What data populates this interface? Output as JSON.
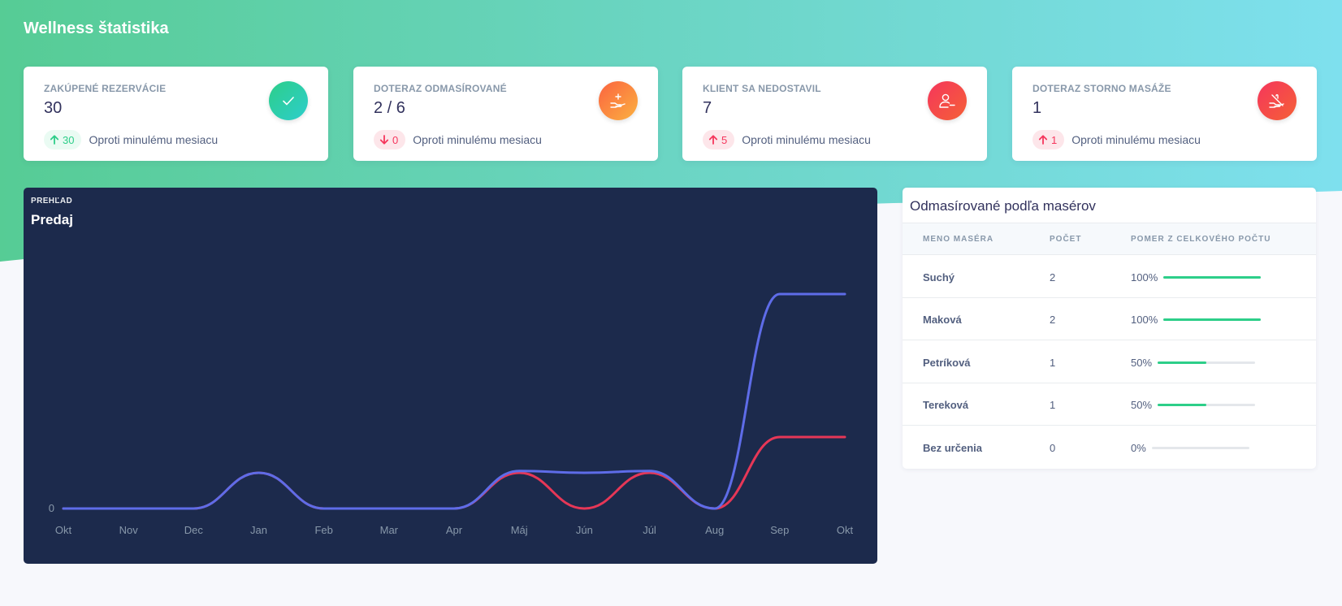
{
  "page": {
    "title": "Wellness štatistika"
  },
  "cards": [
    {
      "label": "ZAKÚPENÉ REZERVÁCIE",
      "value": "30",
      "change": "30",
      "trend": "up",
      "badge": "green",
      "since": "Oproti minulému mesiacu",
      "icon": "check-icon",
      "icon_gradient": [
        "#2dce89",
        "#2dcecc"
      ]
    },
    {
      "label": "DOTERAZ ODMASÍROVANÉ",
      "value": "2 / 6",
      "change": "0",
      "trend": "down",
      "badge": "red",
      "since": "Oproti minulému mesiacu",
      "icon": "hand-plus-icon",
      "icon_gradient": [
        "#fb6340",
        "#fbb140"
      ]
    },
    {
      "label": "KLIENT SA NEDOSTAVIL",
      "value": "7",
      "change": "5",
      "trend": "up",
      "badge": "red",
      "since": "Oproti minulému mesiacu",
      "icon": "user-minus-icon",
      "icon_gradient": [
        "#f5365c",
        "#f56036"
      ]
    },
    {
      "label": "DOTERAZ STORNO MASÁŽE",
      "value": "1",
      "change": "1",
      "trend": "up",
      "badge": "red",
      "since": "Oproti minulému mesiacu",
      "icon": "hand-cancel-icon",
      "icon_gradient": [
        "#f5365c",
        "#f56036"
      ]
    }
  ],
  "chart": {
    "kicker": "PREHĽAD",
    "title": "Predaj"
  },
  "chart_data": {
    "type": "line",
    "categories": [
      "Okt",
      "Nov",
      "Dec",
      "Jan",
      "Feb",
      "Mar",
      "Apr",
      "Máj",
      "Jún",
      "Júl",
      "Aug",
      "Sep",
      "Okt"
    ],
    "series": [
      {
        "values": [
          0,
          0,
          0,
          1,
          0,
          0,
          0,
          1,
          0,
          1,
          0,
          2,
          2
        ],
        "color": "#e63757"
      },
      {
        "values": [
          0,
          0,
          0,
          1,
          0,
          0,
          0,
          1.05,
          1,
          1.05,
          0,
          6,
          6
        ],
        "color": "#5e6ce8"
      }
    ],
    "y_ticks": [
      "0"
    ],
    "ylim": [
      0,
      6.5
    ],
    "background": "#1c2a4c",
    "grid": false
  },
  "table": {
    "title": "Odmasírované podľa masérov",
    "headers": [
      "MENO MASÉRA",
      "POČET",
      "POMER Z CELKOVÉHO POČTU"
    ],
    "rows": [
      {
        "name": "Suchý",
        "count": "2",
        "pct_label": "100%",
        "pct": 100
      },
      {
        "name": "Maková",
        "count": "2",
        "pct_label": "100%",
        "pct": 100
      },
      {
        "name": "Petríková",
        "count": "1",
        "pct_label": "50%",
        "pct": 50
      },
      {
        "name": "Tereková",
        "count": "1",
        "pct_label": "50%",
        "pct": 50
      },
      {
        "name": "Bez určenia",
        "count": "0",
        "pct_label": "0%",
        "pct": 0
      }
    ]
  }
}
